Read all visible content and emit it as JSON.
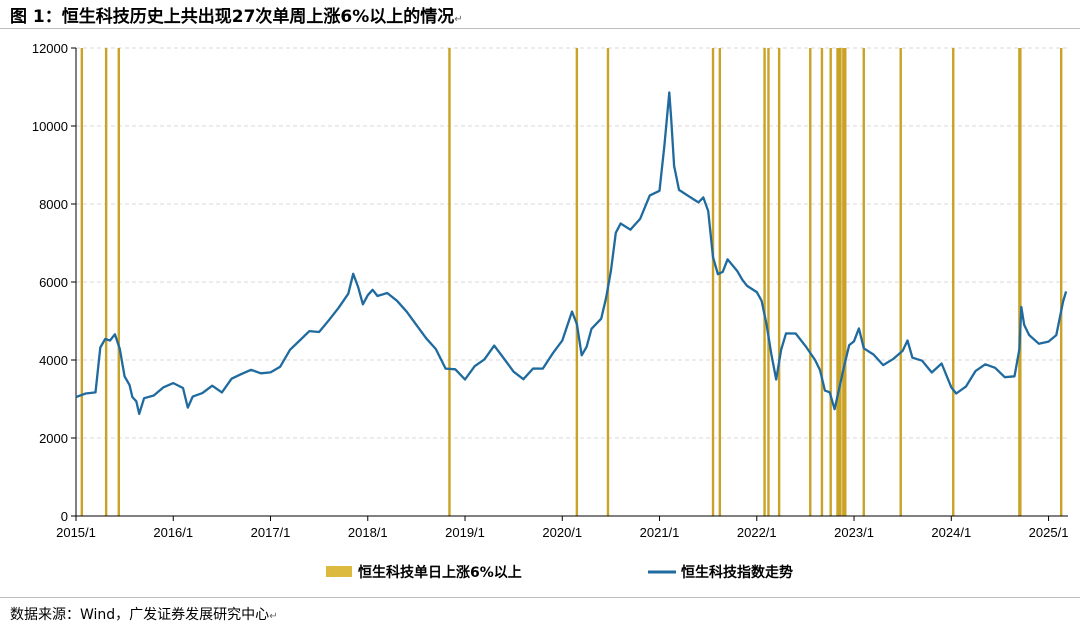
{
  "title": "图 1：恒生科技历史上共出现27次单周上涨6%以上的情况",
  "return_mark": "↵",
  "source": "数据来源：Wind，广发证券发展研究中心",
  "colors": {
    "line": "#1f6a9e",
    "bar": "#c9a227",
    "bar_legend": "#dcb93f",
    "axis": "#000000"
  },
  "chart_data": {
    "type": "line",
    "title": "恒生科技历史上共出现27次单周上涨6%以上的情况",
    "ylim": [
      0,
      12000
    ],
    "yticks": [
      "0",
      "2000",
      "4000",
      "6000",
      "8000",
      "10000",
      "12000"
    ],
    "xlim": [
      2015.0,
      2025.2
    ],
    "xticks": [
      "2015/1",
      "2016/1",
      "2017/1",
      "2018/1",
      "2019/1",
      "2020/1",
      "2021/1",
      "2022/1",
      "2023/1",
      "2024/1",
      "2025/1"
    ],
    "xtick_positions": [
      2015.0,
      2016.0,
      2017.0,
      2018.0,
      2019.0,
      2020.0,
      2021.0,
      2022.0,
      2023.0,
      2024.0,
      2025.0
    ],
    "legend": [
      "恒生科技单日上涨6%以上",
      "恒生科技指数走势"
    ],
    "legend_position": "bottom",
    "surge_weeks": [
      2015.06,
      2015.31,
      2015.44,
      2018.84,
      2020.15,
      2020.47,
      2021.55,
      2021.62,
      2022.08,
      2022.12,
      2022.23,
      2022.55,
      2022.67,
      2022.76,
      2022.83,
      2022.84,
      2022.85,
      2022.86,
      2022.89,
      2022.9,
      2022.91,
      2023.1,
      2023.48,
      2024.02,
      2024.7,
      2024.71,
      2025.13
    ],
    "series": [
      {
        "name": "恒生科技指数走势",
        "points": [
          [
            2015.0,
            3050
          ],
          [
            2015.1,
            3100
          ],
          [
            2015.2,
            3250
          ],
          [
            2015.25,
            4300
          ],
          [
            2015.3,
            4600
          ],
          [
            2015.35,
            4500
          ],
          [
            2015.4,
            4700
          ],
          [
            2015.45,
            4200
          ],
          [
            2015.5,
            3600
          ],
          [
            2015.55,
            3300
          ],
          [
            2015.58,
            3050
          ],
          [
            2015.62,
            2900
          ],
          [
            2015.65,
            2700
          ],
          [
            2015.7,
            3000
          ],
          [
            2015.8,
            3150
          ],
          [
            2015.9,
            3300
          ],
          [
            2016.0,
            3450
          ],
          [
            2016.1,
            3200
          ],
          [
            2016.15,
            2800
          ],
          [
            2016.2,
            3000
          ],
          [
            2016.3,
            3150
          ],
          [
            2016.4,
            3300
          ],
          [
            2016.5,
            3250
          ],
          [
            2016.6,
            3500
          ],
          [
            2016.7,
            3700
          ],
          [
            2016.8,
            3750
          ],
          [
            2016.9,
            3700
          ],
          [
            2017.0,
            3600
          ],
          [
            2017.1,
            3850
          ],
          [
            2017.2,
            4200
          ],
          [
            2017.3,
            4500
          ],
          [
            2017.4,
            4700
          ],
          [
            2017.5,
            4800
          ],
          [
            2017.6,
            5000
          ],
          [
            2017.7,
            5400
          ],
          [
            2017.8,
            5700
          ],
          [
            2017.85,
            6250
          ],
          [
            2017.9,
            5800
          ],
          [
            2017.95,
            5450
          ],
          [
            2018.0,
            5600
          ],
          [
            2018.05,
            5800
          ],
          [
            2018.1,
            5600
          ],
          [
            2018.2,
            5800
          ],
          [
            2018.3,
            5500
          ],
          [
            2018.4,
            5300
          ],
          [
            2018.5,
            4900
          ],
          [
            2018.6,
            4600
          ],
          [
            2018.7,
            4200
          ],
          [
            2018.8,
            3800
          ],
          [
            2018.9,
            3700
          ],
          [
            2019.0,
            3500
          ],
          [
            2019.1,
            3800
          ],
          [
            2019.2,
            4100
          ],
          [
            2019.3,
            4350
          ],
          [
            2019.4,
            4100
          ],
          [
            2019.5,
            3700
          ],
          [
            2019.6,
            3550
          ],
          [
            2019.7,
            3700
          ],
          [
            2019.8,
            3800
          ],
          [
            2019.9,
            4100
          ],
          [
            2020.0,
            4500
          ],
          [
            2020.1,
            5200
          ],
          [
            2020.15,
            5000
          ],
          [
            2020.2,
            4100
          ],
          [
            2020.25,
            4400
          ],
          [
            2020.3,
            4800
          ],
          [
            2020.4,
            5100
          ],
          [
            2020.45,
            5500
          ],
          [
            2020.5,
            6300
          ],
          [
            2020.55,
            7200
          ],
          [
            2020.6,
            7500
          ],
          [
            2020.7,
            7300
          ],
          [
            2020.8,
            7700
          ],
          [
            2020.9,
            8200
          ],
          [
            2021.0,
            8400
          ],
          [
            2021.05,
            9500
          ],
          [
            2021.1,
            10900
          ],
          [
            2021.12,
            10100
          ],
          [
            2021.15,
            9000
          ],
          [
            2021.2,
            8300
          ],
          [
            2021.3,
            8200
          ],
          [
            2021.4,
            8000
          ],
          [
            2021.45,
            8250
          ],
          [
            2021.5,
            7800
          ],
          [
            2021.55,
            6700
          ],
          [
            2021.6,
            6200
          ],
          [
            2021.65,
            6300
          ],
          [
            2021.7,
            6500
          ],
          [
            2021.8,
            6300
          ],
          [
            2021.85,
            6000
          ],
          [
            2021.9,
            5900
          ],
          [
            2022.0,
            5700
          ],
          [
            2022.05,
            5600
          ],
          [
            2022.1,
            4900
          ],
          [
            2022.15,
            4200
          ],
          [
            2022.2,
            3500
          ],
          [
            2022.25,
            4300
          ],
          [
            2022.3,
            4600
          ],
          [
            2022.4,
            4700
          ],
          [
            2022.5,
            4300
          ],
          [
            2022.6,
            4000
          ],
          [
            2022.65,
            3700
          ],
          [
            2022.7,
            3300
          ],
          [
            2022.75,
            3150
          ],
          [
            2022.8,
            2800
          ],
          [
            2022.85,
            3300
          ],
          [
            2022.9,
            3900
          ],
          [
            2022.95,
            4300
          ],
          [
            2023.0,
            4500
          ],
          [
            2023.05,
            4750
          ],
          [
            2023.1,
            4300
          ],
          [
            2023.2,
            4100
          ],
          [
            2023.3,
            3950
          ],
          [
            2023.4,
            4000
          ],
          [
            2023.5,
            4300
          ],
          [
            2023.55,
            4500
          ],
          [
            2023.6,
            4100
          ],
          [
            2023.7,
            3900
          ],
          [
            2023.8,
            3700
          ],
          [
            2023.9,
            3850
          ],
          [
            2024.0,
            3300
          ],
          [
            2024.05,
            3100
          ],
          [
            2024.15,
            3400
          ],
          [
            2024.25,
            3700
          ],
          [
            2024.35,
            3950
          ],
          [
            2024.45,
            3800
          ],
          [
            2024.55,
            3600
          ],
          [
            2024.65,
            3500
          ],
          [
            2024.7,
            4300
          ],
          [
            2024.72,
            5300
          ],
          [
            2024.75,
            4900
          ],
          [
            2024.8,
            4600
          ],
          [
            2024.9,
            4500
          ],
          [
            2025.0,
            4450
          ],
          [
            2025.08,
            4700
          ],
          [
            2025.15,
            5500
          ],
          [
            2025.18,
            5800
          ]
        ]
      }
    ]
  }
}
